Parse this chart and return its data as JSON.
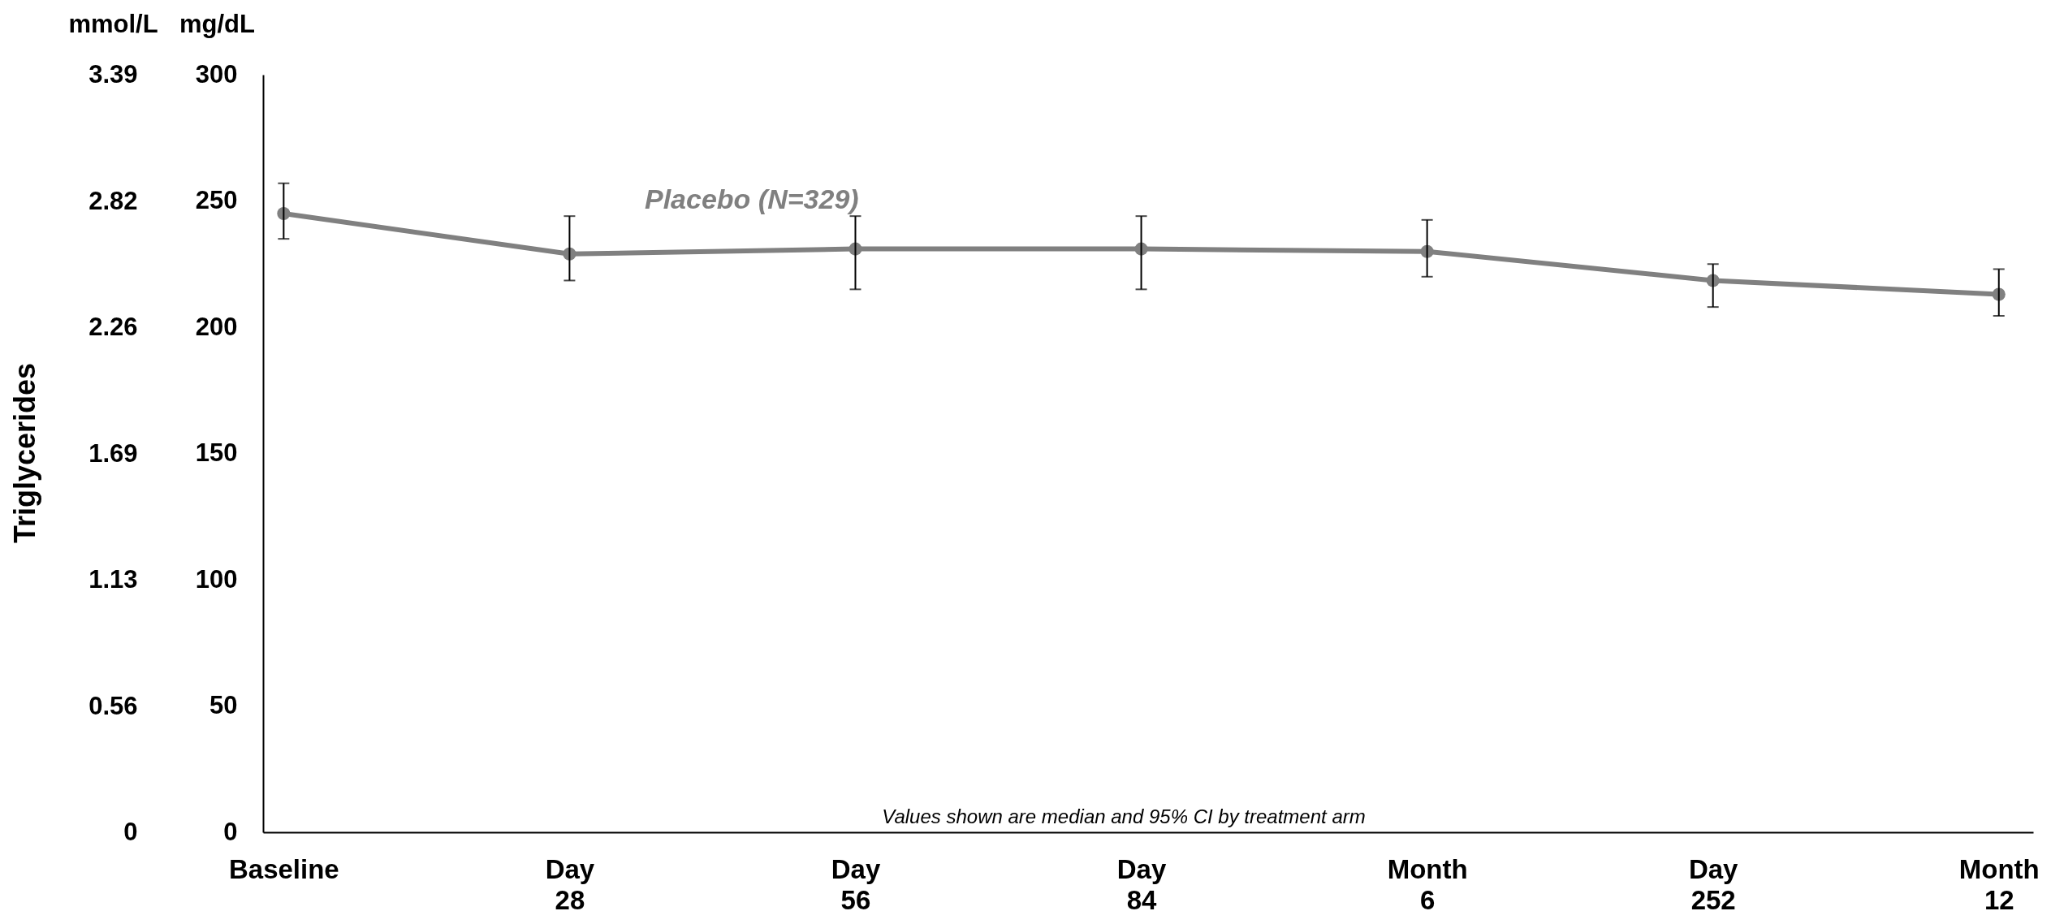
{
  "chart_data": {
    "type": "line",
    "ylabel": "mg/dL",
    "y2label": "mmol/L",
    "annotations": [
      "Triglycerides",
      "Values shown are median and 95% CI by treatment arm"
    ],
    "categories": [
      "Baseline",
      "Day 28",
      "Day 56",
      "Day 84",
      "Month 6",
      "Day 252",
      "Month 12"
    ],
    "ylim": [
      0,
      300
    ],
    "yticks": [
      0,
      50,
      100,
      150,
      200,
      250,
      300
    ],
    "y2lim": [
      0,
      3.39
    ],
    "y2ticks": [
      0,
      0.56,
      1.13,
      1.69,
      2.26,
      2.82,
      3.39
    ],
    "series": [
      {
        "name": "Placebo (N=329)",
        "color": "#808080",
        "values": [
          245,
          229,
          231,
          231,
          230,
          218.5,
          213
        ],
        "errors": [
          [
            235,
            257
          ],
          [
            218.5,
            244
          ],
          [
            215,
            244
          ],
          [
            215,
            244
          ],
          [
            220,
            242.5
          ],
          [
            208,
            225
          ],
          [
            204.5,
            223
          ]
        ]
      }
    ],
    "grid": false,
    "marker": "circle",
    "line_style": "solid"
  }
}
